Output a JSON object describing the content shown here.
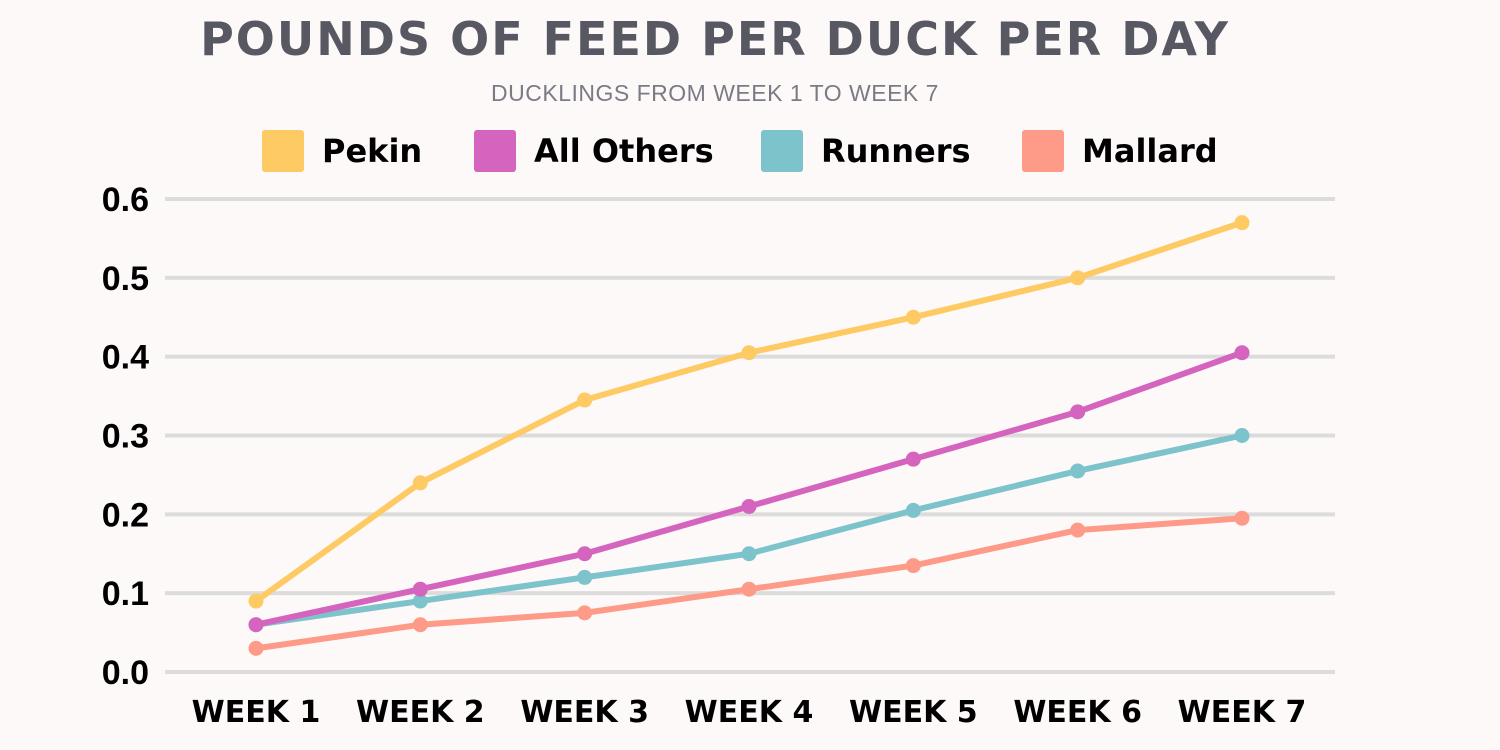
{
  "chart_data": {
    "type": "line",
    "title": "POUNDS OF FEED PER DUCK PER DAY",
    "subtitle": "DUCKLINGS FROM WEEK 1 TO WEEK 7",
    "xlabel": "",
    "ylabel": "",
    "categories": [
      "WEEK 1",
      "WEEK 2",
      "WEEK 3",
      "WEEK 4",
      "WEEK 5",
      "WEEK 6",
      "WEEK 7"
    ],
    "yticks": [
      "0.0",
      "0.1",
      "0.2",
      "0.3",
      "0.4",
      "0.5",
      "0.6"
    ],
    "ylim": [
      0,
      0.6
    ],
    "grid": true,
    "legend_position": "top",
    "series": [
      {
        "name": "Pekin",
        "color": "#fdca64",
        "values": [
          0.09,
          0.24,
          0.345,
          0.405,
          0.45,
          0.5,
          0.57
        ]
      },
      {
        "name": "All Others",
        "color": "#d464bd",
        "values": [
          0.06,
          0.105,
          0.15,
          0.21,
          0.27,
          0.33,
          0.405
        ]
      },
      {
        "name": "Runners",
        "color": "#7dc3cc",
        "values": [
          0.06,
          0.09,
          0.12,
          0.15,
          0.205,
          0.255,
          0.3
        ]
      },
      {
        "name": "Mallard",
        "color": "#fd9a88",
        "values": [
          0.03,
          0.06,
          0.075,
          0.105,
          0.135,
          0.18,
          0.195
        ]
      }
    ]
  }
}
